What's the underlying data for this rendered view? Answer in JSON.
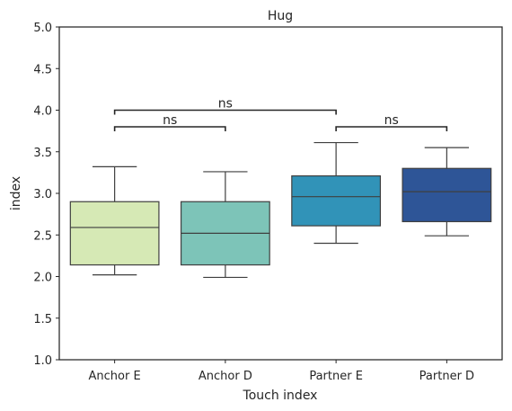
{
  "chart_data": {
    "type": "box",
    "title": "Hug",
    "xlabel": "Touch index",
    "ylabel": "index",
    "ylim": [
      1.0,
      5.0
    ],
    "yticks": [
      "1.0",
      "1.5",
      "2.0",
      "2.5",
      "3.0",
      "3.5",
      "4.0",
      "4.5",
      "5.0"
    ],
    "grid": false,
    "categories": [
      "Anchor E",
      "Anchor D",
      "Partner E",
      "Partner D"
    ],
    "boxes": [
      {
        "whisker_low": 2.02,
        "q1": 2.14,
        "median": 2.59,
        "q3": 2.9,
        "whisker_high": 3.32,
        "color": "#d6e9b5"
      },
      {
        "whisker_low": 1.99,
        "q1": 2.14,
        "median": 2.52,
        "q3": 2.9,
        "whisker_high": 3.26,
        "color": "#7dc4b8"
      },
      {
        "whisker_low": 2.4,
        "q1": 2.61,
        "median": 2.96,
        "q3": 3.21,
        "whisker_high": 3.61,
        "color": "#3193b8"
      },
      {
        "whisker_low": 2.49,
        "q1": 2.66,
        "median": 3.02,
        "q3": 3.3,
        "whisker_high": 3.55,
        "color": "#2e5597"
      }
    ],
    "annotations": [
      {
        "from": 0,
        "to": 1,
        "y": 3.8,
        "label": "ns"
      },
      {
        "from": 0,
        "to": 2,
        "y": 4.0,
        "label": "ns"
      },
      {
        "from": 2,
        "to": 3,
        "y": 3.8,
        "label": "ns"
      }
    ]
  }
}
